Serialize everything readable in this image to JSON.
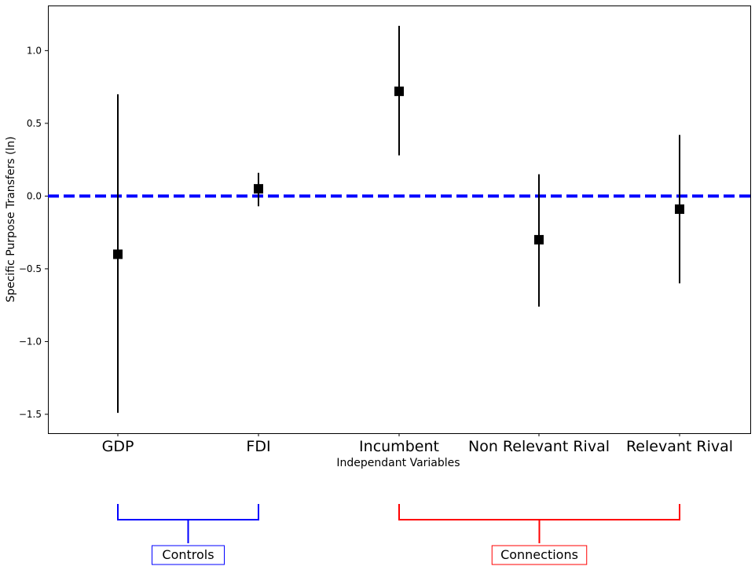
{
  "chart_data": {
    "type": "scatter",
    "title": "",
    "xlabel": "Independant Variables",
    "ylabel": "Specific Purpose Transfers (ln)",
    "categories": [
      "GDP",
      "FDI",
      "Incumbent",
      "Non Relevant Rival",
      "Relevant Rival"
    ],
    "series": [
      {
        "values": [
          -0.4,
          0.05,
          0.72,
          -0.3,
          -0.09
        ],
        "ci_low": [
          -1.49,
          -0.07,
          0.28,
          -0.76,
          -0.6
        ],
        "ci_high": [
          0.7,
          0.16,
          1.17,
          0.15,
          0.42
        ]
      }
    ],
    "ylim": [
      -1.63,
      1.31
    ],
    "yticks": [
      -1.5,
      -1.0,
      -0.5,
      0.0,
      0.5,
      1.0
    ],
    "ytick_labels": [
      "−1.5",
      "−1.0",
      "−0.5",
      "0.0",
      "0.5",
      "1.0"
    ],
    "reference_line": {
      "y": 0.0,
      "color": "#0000ff",
      "style": "dashed"
    },
    "marker_color": "#000000",
    "groups": [
      {
        "label": "Controls",
        "color": "#0000ff",
        "from": "GDP",
        "to": "FDI"
      },
      {
        "label": "Connections",
        "color": "#ff0000",
        "from": "Incumbent",
        "to": "Relevant Rival"
      }
    ],
    "grid": false,
    "legend": "none"
  }
}
